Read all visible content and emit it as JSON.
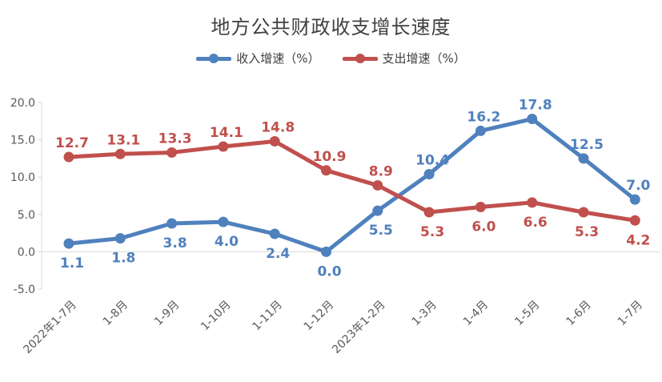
{
  "chart_data": {
    "type": "line",
    "title": "地方公共财政收支增长速度",
    "xlabel": "",
    "ylabel": "",
    "ylim": [
      -5,
      20
    ],
    "yticks": [
      "20.0",
      "15.0",
      "10.0",
      "5.0",
      "0.0",
      "-5.0"
    ],
    "grid": false,
    "legend": "top",
    "categories": [
      "2022年1-7月",
      "1-8月",
      "1-9月",
      "1-10月",
      "1-11月",
      "1-12月",
      "2023年1-2月",
      "1-3月",
      "1-4月",
      "1-5月",
      "1-6月",
      "1-7月"
    ],
    "series": [
      {
        "name": "收入增速（%）",
        "color": "#4f81bd",
        "values": [
          1.1,
          1.8,
          3.8,
          4.0,
          2.4,
          0.0,
          5.5,
          10.4,
          16.2,
          17.8,
          12.5,
          7.0
        ],
        "labels": [
          "1.1",
          "1.8",
          "3.8",
          "4.0",
          "2.4",
          "0.0",
          "5.5",
          "10.4",
          "16.2",
          "17.8",
          "12.5",
          "7.0"
        ]
      },
      {
        "name": "支出增速（%）",
        "color": "#c0504d",
        "values": [
          12.7,
          13.1,
          13.3,
          14.1,
          14.8,
          10.9,
          8.9,
          5.3,
          6.0,
          6.6,
          5.3,
          4.2
        ],
        "labels": [
          "12.7",
          "13.1",
          "13.3",
          "14.1",
          "14.8",
          "10.9",
          "8.9",
          "5.3",
          "6.0",
          "6.6",
          "5.3",
          "4.2"
        ]
      }
    ]
  }
}
